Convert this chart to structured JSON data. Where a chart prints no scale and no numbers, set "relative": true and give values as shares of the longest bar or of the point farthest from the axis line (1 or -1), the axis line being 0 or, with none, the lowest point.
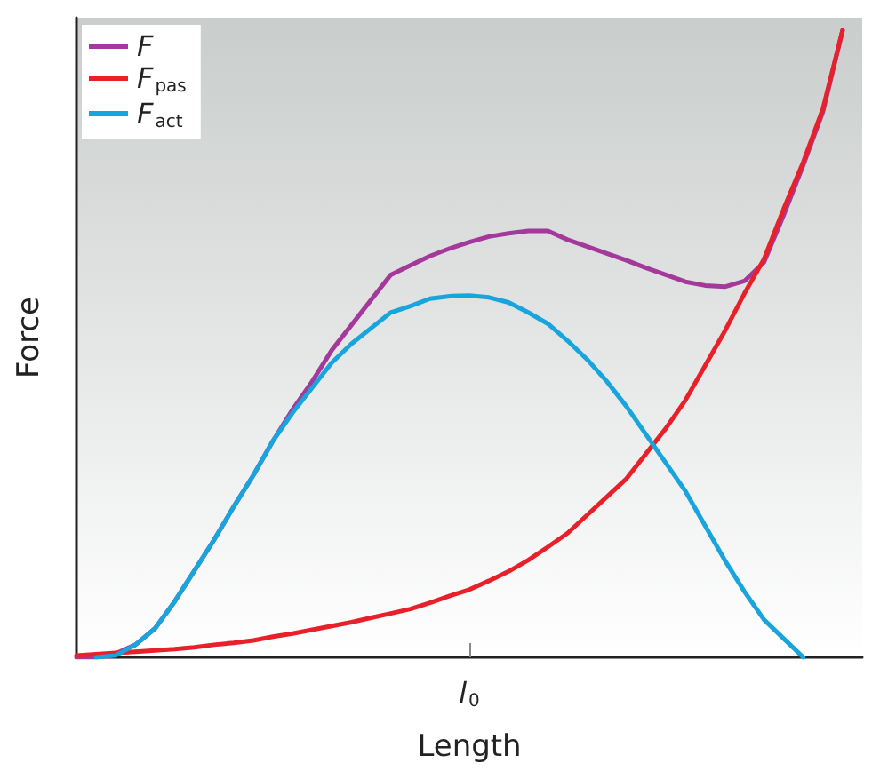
{
  "chart_data": {
    "type": "line",
    "relative": true,
    "xlabel": "Length",
    "ylabel": "Force",
    "legend": "top left",
    "annotations": [
      "l$_{0}$"
    ],
    "grid": false,
    "marker": "none",
    "line_style": "solid",
    "categories": [
      null,
      null,
      null,
      null,
      null,
      null,
      null,
      null,
      null,
      null,
      null,
      null,
      null,
      null,
      null,
      null,
      null,
      null,
      null,
      null,
      null,
      null,
      null,
      null,
      null,
      null,
      null,
      null,
      null,
      null,
      null,
      null,
      null,
      null,
      null,
      null,
      null,
      null,
      null,
      null,
      null
    ],
    "series": [
      {
        "name": "F",
        "color": "#a3399a",
        "values": [
          0,
          0,
          0.006,
          0.02,
          0.046,
          0.089,
          0.138,
          0.187,
          0.24,
          0.29,
          0.345,
          0.395,
          0.44,
          0.49,
          0.53,
          0.57,
          0.61,
          0.625,
          0.64,
          0.652,
          0.662,
          0.671,
          0.676,
          0.68,
          0.68,
          0.666,
          0.655,
          0.644,
          0.633,
          0.621,
          0.61,
          0.599,
          0.593,
          0.591,
          0.6,
          0.63,
          0.705,
          0.785,
          0.87,
          1,
          null
        ]
      },
      {
        "name": "F$_{pas}$",
        "color": "#e8202a",
        "values": [
          0.003,
          0.005,
          0.007,
          0.009,
          0.011,
          0.013,
          0.016,
          0.02,
          0.023,
          0.027,
          0.033,
          0.038,
          0.044,
          0.05,
          0.056,
          0.063,
          0.07,
          0.077,
          0.087,
          0.098,
          0.108,
          0.122,
          0.137,
          0.155,
          0.176,
          0.198,
          0.227,
          0.256,
          0.285,
          0.325,
          0.365,
          0.41,
          0.465,
          0.52,
          0.58,
          0.635,
          0.715,
          0.79,
          0.875,
          1,
          null
        ]
      },
      {
        "name": "F$_{act}$",
        "color": "#18a4dc",
        "values": [
          null,
          0,
          0.003,
          0.02,
          0.046,
          0.089,
          0.138,
          0.187,
          0.24,
          0.29,
          0.345,
          0.39,
          0.43,
          0.47,
          0.5,
          0.525,
          0.55,
          0.56,
          0.572,
          0.576,
          0.577,
          0.574,
          0.566,
          0.55,
          0.532,
          0.505,
          0.475,
          0.44,
          0.4,
          0.355,
          0.31,
          0.265,
          0.21,
          0.155,
          0.105,
          0.06,
          0.03,
          0,
          null,
          null,
          null
        ]
      }
    ]
  }
}
